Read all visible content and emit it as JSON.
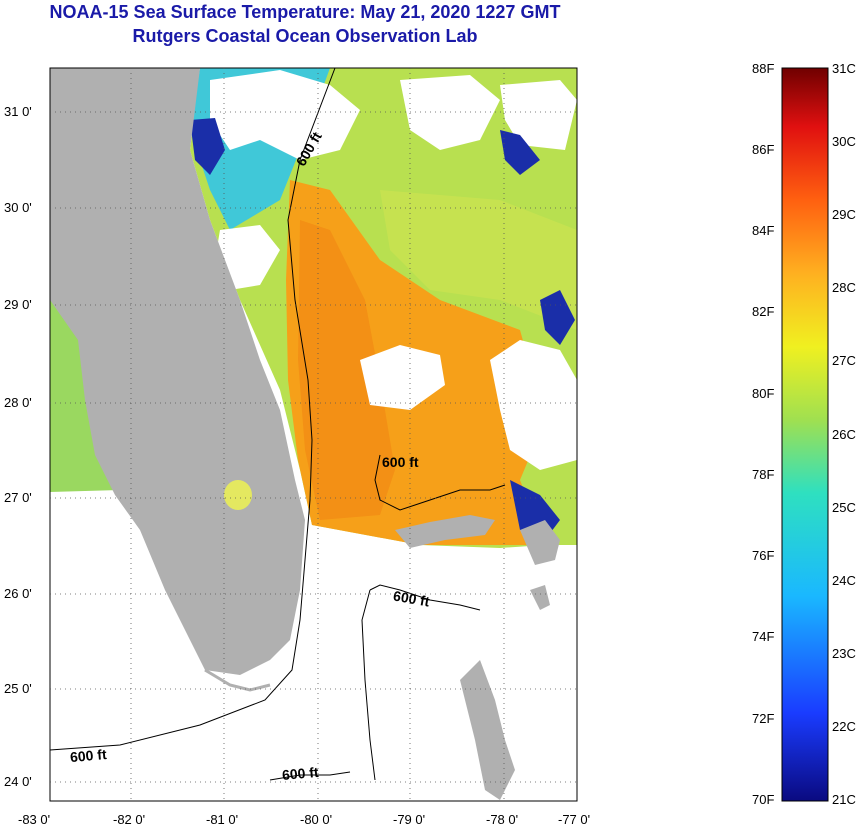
{
  "title": {
    "line1": "NOAA-15 Sea Surface Temperature:  May 21, 2020 1227 GMT",
    "line2": "Rutgers Coastal Ocean Observation Lab"
  },
  "map": {
    "lon_labels": [
      "-83 0'",
      "-82 0'",
      "-81 0'",
      "-80 0'",
      "-79 0'",
      "-78 0'",
      "-77 0'"
    ],
    "lat_labels": [
      "31 0'",
      "30 0'",
      "29 0'",
      "28 0'",
      "27 0'",
      "26 0'",
      "25 0'",
      "24 0'"
    ],
    "contour_labels": [
      "600 ft",
      "600 ft",
      "600 ft",
      "600 ft",
      "600 ft"
    ],
    "colors": {
      "land": "#b0b0b0",
      "cloud": "#ffffff",
      "frame": "#000000"
    }
  },
  "colorbar": {
    "fahrenheit": [
      "88F",
      "86F",
      "84F",
      "82F",
      "80F",
      "78F",
      "76F",
      "74F",
      "72F",
      "70F"
    ],
    "celsius": [
      "31C",
      "30C",
      "29C",
      "28C",
      "27C",
      "26C",
      "25C",
      "24C",
      "23C",
      "22C",
      "21C"
    ]
  }
}
